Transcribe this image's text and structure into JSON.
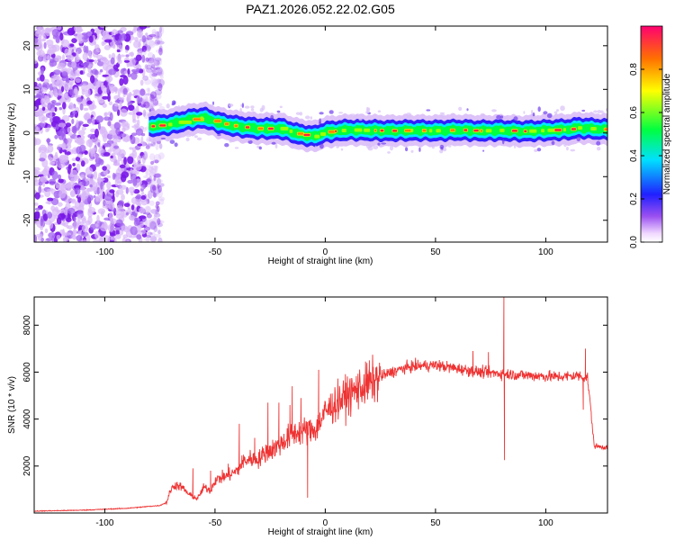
{
  "figure_title": "PAZ1.2026.052.22.02.G05",
  "colors": {
    "snr_line": "#ee3333",
    "spectrogram_background": "#ffffff"
  },
  "chart_data": [
    {
      "type": "heatmap",
      "title": "PAZ1.2026.052.22.02.G05",
      "xlabel": "Height of straight line (km)",
      "ylabel": "Frequency (Hz)",
      "xlim": [
        -132,
        128
      ],
      "ylim": [
        -25,
        24.5
      ],
      "x_ticks": [
        -100,
        -50,
        0,
        50,
        100
      ],
      "y_ticks": [
        -20,
        -10,
        0,
        10,
        20
      ],
      "x_tick_labels": [
        "-100",
        "-50",
        "0",
        "50",
        "100"
      ],
      "y_tick_labels": [
        "-20",
        "-10",
        "0",
        "10",
        "20"
      ],
      "noise_region_x": [
        -132,
        -78
      ],
      "ridge": {
        "x": [
          -80,
          -70,
          -62,
          -55,
          -48,
          -40,
          -30,
          -20,
          -12,
          -5,
          0,
          10,
          20,
          30,
          40,
          50,
          60,
          70,
          80,
          90,
          100,
          110,
          115,
          120,
          128
        ],
        "frequency": [
          1.5,
          2.0,
          3.0,
          3.5,
          2.3,
          1.5,
          1.0,
          1.0,
          -0.3,
          -0.8,
          0.2,
          0.7,
          0.6,
          0.5,
          0.6,
          0.5,
          0.7,
          0.5,
          0.6,
          0.4,
          0.6,
          0.8,
          1.2,
          1.0,
          0.8
        ]
      },
      "colorbar": {
        "label": "Normalized spectral amplitude",
        "range": [
          0.0,
          1.0
        ],
        "ticks": [
          0.0,
          0.2,
          0.4,
          0.6,
          0.8
        ],
        "tick_labels": [
          "0.0",
          "0.2",
          "0.4",
          "0.6",
          "0.8"
        ]
      }
    },
    {
      "type": "line",
      "xlabel": "Height of straight line (km)",
      "ylabel": "SNR (10 * v/v)",
      "xlim": [
        -132,
        128
      ],
      "ylim": [
        0,
        9200
      ],
      "x_ticks": [
        -100,
        -50,
        0,
        50,
        100
      ],
      "y_ticks": [
        2000,
        4000,
        6000,
        8000
      ],
      "x_tick_labels": [
        "-100",
        "-50",
        "0",
        "50",
        "100"
      ],
      "y_tick_labels": [
        "2000",
        "4000",
        "6000",
        "8000"
      ],
      "series": [
        {
          "name": "SNR",
          "x": [
            -132,
            -110,
            -90,
            -75,
            -72,
            -70,
            -68,
            -65,
            -62,
            -58,
            -55,
            -52,
            -50,
            -47,
            -44,
            -40,
            -37,
            -34,
            -30,
            -27,
            -24,
            -20,
            -17,
            -14,
            -10,
            -7,
            -4,
            0,
            5,
            10,
            15,
            20,
            25,
            30,
            35,
            40,
            50,
            60,
            70,
            78,
            85,
            95,
            105,
            115,
            119,
            122,
            128
          ],
          "values": [
            80,
            120,
            200,
            320,
            450,
            1000,
            1200,
            1100,
            800,
            600,
            1100,
            950,
            1400,
            1500,
            1600,
            1800,
            2200,
            2300,
            2300,
            2600,
            2700,
            2950,
            3200,
            3400,
            3500,
            3500,
            3600,
            4300,
            4700,
            5000,
            5300,
            5500,
            5800,
            6000,
            6150,
            6250,
            6300,
            6150,
            6000,
            5950,
            5900,
            5850,
            5800,
            5850,
            5750,
            2850,
            2800
          ],
          "spikes": [
            {
              "x": -60,
              "value": 1900
            },
            {
              "x": -52,
              "value": 1800
            },
            {
              "x": -44,
              "value": 2100
            },
            {
              "x": -39,
              "value": 3800
            },
            {
              "x": -32,
              "value": 3200
            },
            {
              "x": -26,
              "value": 4700
            },
            {
              "x": -21,
              "value": 4700
            },
            {
              "x": -16,
              "value": 4600
            },
            {
              "x": -15,
              "value": 5400
            },
            {
              "x": -11,
              "value": 4900
            },
            {
              "x": -8,
              "value": 650
            },
            {
              "x": -3,
              "value": 6100
            },
            {
              "x": 20,
              "value": 6500
            },
            {
              "x": 67,
              "value": 6900
            },
            {
              "x": 74,
              "value": 6850
            },
            {
              "x": 81,
              "value": 9200
            },
            {
              "x": 81.3,
              "value": 2250
            },
            {
              "x": 118,
              "value": 7000
            },
            {
              "x": 117,
              "value": 4400
            }
          ]
        }
      ]
    }
  ]
}
